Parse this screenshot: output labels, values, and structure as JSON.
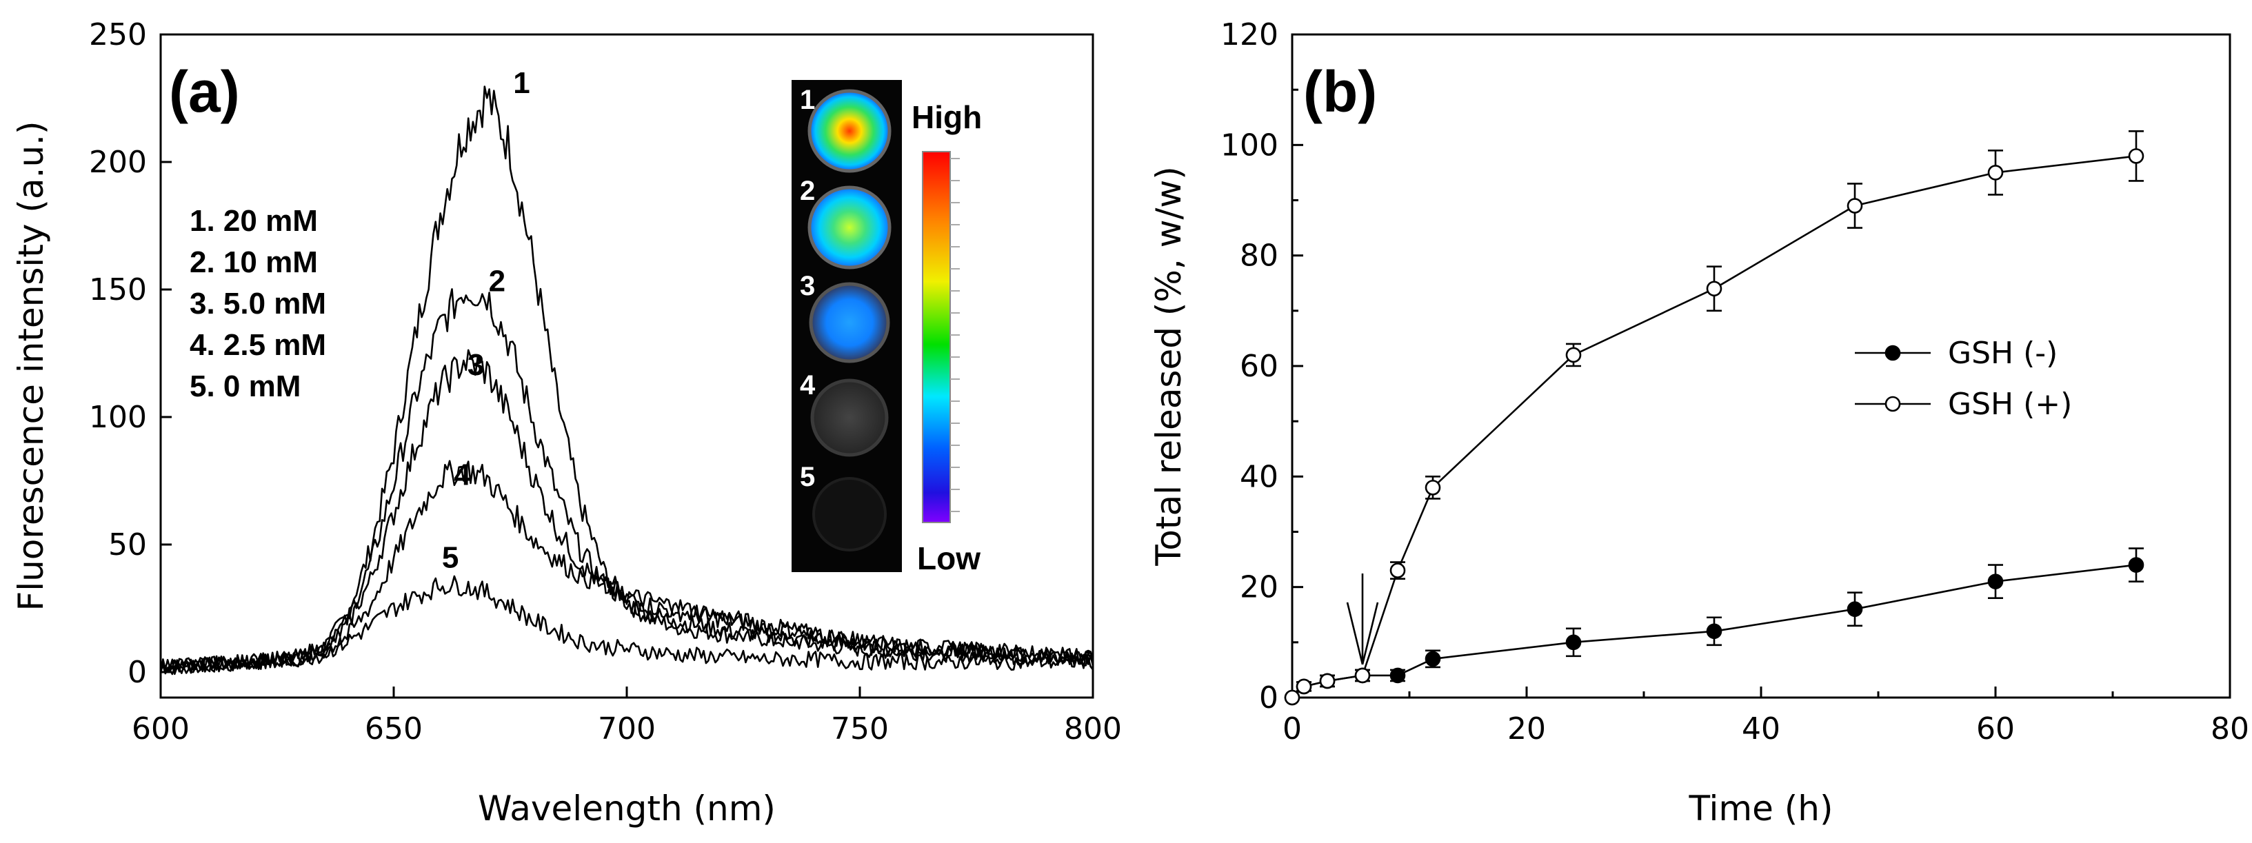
{
  "chart_data": [
    {
      "panel_label": "(a)",
      "type": "line",
      "xlabel": "Wavelength (nm)",
      "ylabel": "Fluorescence intensity (a.u.)",
      "xlim": [
        600,
        800
      ],
      "ylim": [
        -10,
        250
      ],
      "x_ticks": [
        600,
        650,
        700,
        750,
        800
      ],
      "y_ticks": [
        0,
        50,
        100,
        150,
        200,
        250
      ],
      "legend_text": [
        "1. 20 mM",
        "2. 10 mM",
        "3. 5.0 mM",
        "4. 2.5 mM",
        "5. 0 mM"
      ],
      "series": [
        {
          "curve_label": "1",
          "peak_x": 670,
          "peak_y": 226,
          "x": [
            600,
            610,
            620,
            630,
            635,
            640,
            645,
            650,
            655,
            660,
            665,
            670,
            675,
            680,
            685,
            690,
            695,
            700,
            705,
            710,
            720,
            730,
            740,
            750,
            760,
            770,
            780,
            790,
            800
          ],
          "y": [
            2,
            3,
            4,
            6,
            10,
            22,
            48,
            86,
            135,
            180,
            212,
            226,
            205,
            160,
            108,
            66,
            40,
            27,
            21,
            18,
            15,
            13,
            11,
            9,
            8,
            7,
            6,
            5,
            5
          ]
        },
        {
          "curve_label": "2",
          "peak_x": 668,
          "peak_y": 152,
          "x": [
            600,
            610,
            620,
            630,
            635,
            640,
            645,
            650,
            655,
            660,
            665,
            670,
            675,
            680,
            685,
            690,
            695,
            700,
            705,
            710,
            720,
            730,
            740,
            750,
            760,
            770,
            780,
            790,
            800
          ],
          "y": [
            2,
            3,
            4,
            6,
            10,
            20,
            42,
            74,
            110,
            136,
            150,
            148,
            128,
            98,
            70,
            48,
            35,
            27,
            23,
            20,
            17,
            14,
            12,
            10,
            9,
            8,
            7,
            6,
            5
          ]
        },
        {
          "curve_label": "3",
          "peak_x": 667,
          "peak_y": 124,
          "x": [
            600,
            610,
            620,
            630,
            635,
            640,
            645,
            650,
            655,
            660,
            665,
            670,
            675,
            680,
            685,
            690,
            695,
            700,
            705,
            710,
            720,
            730,
            740,
            750,
            760,
            770,
            780,
            790,
            800
          ],
          "y": [
            2,
            3,
            4,
            6,
            10,
            18,
            36,
            62,
            90,
            112,
            122,
            118,
            100,
            76,
            56,
            42,
            34,
            29,
            26,
            24,
            21,
            18,
            15,
            12,
            10,
            9,
            8,
            7,
            6
          ]
        },
        {
          "curve_label": "4",
          "peak_x": 665,
          "peak_y": 82,
          "x": [
            600,
            610,
            620,
            630,
            635,
            640,
            645,
            650,
            655,
            660,
            665,
            670,
            675,
            680,
            685,
            690,
            695,
            700,
            705,
            710,
            720,
            730,
            740,
            750,
            760,
            770,
            780,
            790,
            800
          ],
          "y": [
            2,
            3,
            4,
            5,
            8,
            14,
            26,
            44,
            62,
            76,
            80,
            76,
            64,
            52,
            44,
            38,
            34,
            30,
            28,
            26,
            22,
            18,
            15,
            12,
            10,
            9,
            8,
            7,
            6
          ]
        },
        {
          "curve_label": "5",
          "peak_x": 663,
          "peak_y": 35,
          "x": [
            600,
            610,
            620,
            630,
            635,
            640,
            645,
            650,
            655,
            660,
            665,
            670,
            675,
            680,
            685,
            690,
            695,
            700,
            705,
            710,
            720,
            730,
            740,
            750,
            760,
            770,
            780,
            790,
            800
          ],
          "y": [
            2,
            3,
            4,
            5,
            7,
            12,
            18,
            25,
            30,
            34,
            34,
            31,
            26,
            20,
            16,
            12,
            10,
            9,
            8,
            7,
            6,
            5,
            5,
            4,
            4,
            4,
            4,
            4,
            4
          ]
        }
      ],
      "inset": {
        "well_numbers": [
          "1",
          "2",
          "3",
          "4",
          "5"
        ],
        "colorbar_high": "High",
        "colorbar_low": "Low",
        "colorbar_colors": [
          "#ff0000",
          "#ff7f00",
          "#ffff00",
          "#00ff00",
          "#00ffff",
          "#0060ff",
          "#0000ff",
          "#7f00ff"
        ]
      }
    },
    {
      "panel_label": "(b)",
      "type": "line",
      "xlabel": "Time (h)",
      "ylabel": "Total released (%, w/w)",
      "xlim": [
        0,
        80
      ],
      "ylim": [
        0,
        120
      ],
      "x_ticks": [
        0,
        20,
        40,
        60,
        80
      ],
      "y_ticks": [
        0,
        20,
        40,
        60,
        80,
        100,
        120
      ],
      "legend": "right-middle",
      "arrow_at_x": 6,
      "series": [
        {
          "name": "GSH (-)",
          "marker": "filled-circle",
          "x": [
            0,
            1,
            3,
            6,
            9,
            12,
            24,
            36,
            48,
            60,
            72
          ],
          "y": [
            0,
            2,
            3,
            4,
            4,
            7,
            10,
            12,
            16,
            21,
            24
          ],
          "err": [
            0,
            0.8,
            1,
            1,
            1,
            1.5,
            2.5,
            2.5,
            3,
            3,
            3
          ]
        },
        {
          "name": "GSH (+)",
          "marker": "open-circle",
          "x": [
            0,
            1,
            3,
            6,
            9,
            12,
            24,
            36,
            48,
            60,
            72
          ],
          "y": [
            0,
            2,
            3,
            4,
            23,
            38,
            62,
            74,
            89,
            95,
            98
          ],
          "err": [
            0,
            0.8,
            1,
            1,
            1.5,
            2,
            2,
            4,
            4,
            4,
            4.5
          ]
        }
      ]
    }
  ]
}
